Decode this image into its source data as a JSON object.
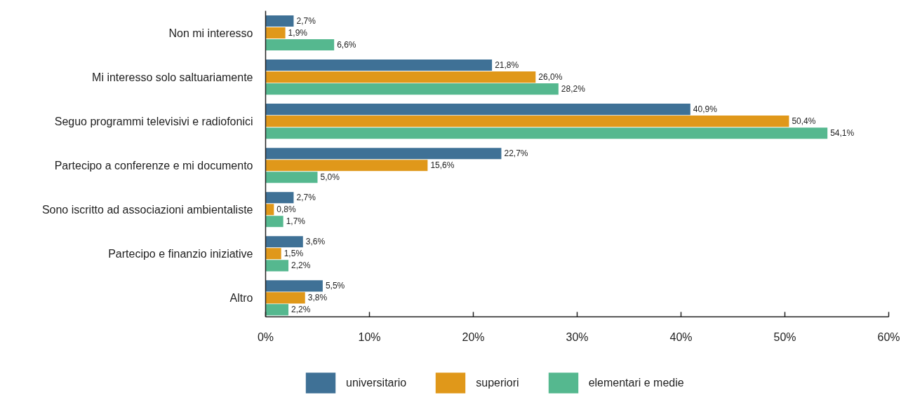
{
  "chart_data": {
    "type": "bar",
    "orientation": "horizontal",
    "categories": [
      "Non mi interesso",
      "Mi interesso solo saltuariamente",
      "Seguo programmi televisivi e radiofonici",
      "Partecipo a conferenze e mi documento",
      "Sono iscritto ad associazioni ambientaliste",
      "Partecipo e finanzio iniziative",
      "Altro"
    ],
    "series": [
      {
        "name": "universitario",
        "color": "#3f7196",
        "values": [
          2.7,
          21.8,
          40.9,
          22.7,
          2.7,
          3.6,
          5.5
        ],
        "value_labels": [
          "2,7%",
          "21,8%",
          "40,9%",
          "22,7%",
          "2,7%",
          "3,6%",
          "5,5%"
        ]
      },
      {
        "name": "superiori",
        "color": "#e0981a",
        "values": [
          1.9,
          26.0,
          50.4,
          15.6,
          0.8,
          1.5,
          3.8
        ],
        "value_labels": [
          "1,9%",
          "26,0%",
          "50,4%",
          "15,6%",
          "0,8%",
          "1,5%",
          "3,8%"
        ]
      },
      {
        "name": "elementari e medie",
        "color": "#55b88f",
        "values": [
          6.6,
          28.2,
          54.1,
          5.0,
          1.7,
          2.2,
          2.2
        ],
        "value_labels": [
          "6,6%",
          "28,2%",
          "54,1%",
          "5,0%",
          "1,7%",
          "2,2%",
          "2,2%"
        ]
      }
    ],
    "xlim": [
      0,
      60
    ],
    "xticks": [
      {
        "value": 0,
        "label": "0%"
      },
      {
        "value": 10,
        "label": "10%"
      },
      {
        "value": 20,
        "label": "20%"
      },
      {
        "value": 30,
        "label": "30%"
      },
      {
        "value": 40,
        "label": "40%"
      },
      {
        "value": 50,
        "label": "50%"
      },
      {
        "value": 60,
        "label": "60%"
      }
    ],
    "legend": "bottom"
  }
}
